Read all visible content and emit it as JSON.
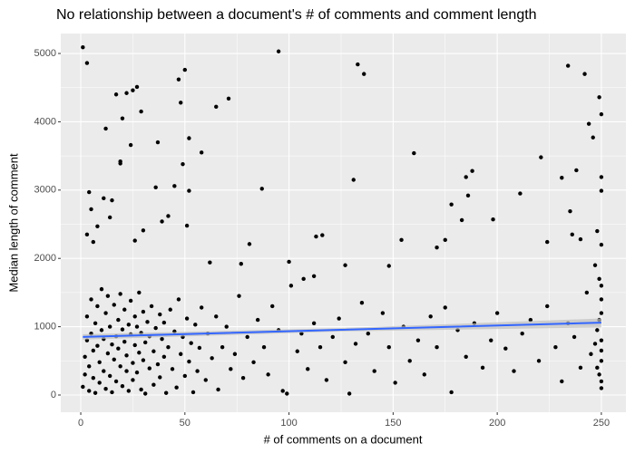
{
  "chart_data": {
    "type": "scatter",
    "title": "No relationship between a document's # of comments and comment length",
    "x_label": "# of comments on a document",
    "y_label": "Median length of comment",
    "xlim": [
      -9.6,
      261.8
    ],
    "ylim": [
      -252,
      5292
    ],
    "xticks": [
      0,
      50,
      100,
      150,
      200,
      250
    ],
    "yticks": [
      0,
      1000,
      2000,
      3000,
      4000,
      5000
    ],
    "grid": true,
    "panel_color": "#ebebeb",
    "series": [
      {
        "color": "#000000",
        "x": [
          1,
          3,
          95,
          133,
          136,
          234,
          242,
          249,
          250,
          27,
          25,
          22,
          17,
          29,
          47,
          50,
          48,
          65,
          71,
          12,
          20,
          24,
          19,
          19,
          37,
          52,
          58,
          49,
          45,
          36,
          4,
          5,
          11,
          15,
          52,
          87,
          131,
          160,
          188,
          185,
          178,
          198,
          211,
          221,
          231,
          238,
          235,
          246,
          244,
          250,
          250,
          183,
          186,
          116,
          113,
          127,
          148,
          154,
          171,
          175,
          224,
          236,
          240,
          248,
          250,
          42,
          39,
          51,
          26,
          30,
          8,
          14,
          3,
          6,
          81,
          77,
          62,
          100,
          107,
          112,
          1,
          2,
          2,
          3,
          3,
          4,
          4,
          5,
          5,
          6,
          6,
          7,
          7,
          8,
          8,
          9,
          9,
          10,
          10,
          11,
          11,
          12,
          12,
          13,
          13,
          14,
          14,
          15,
          15,
          16,
          16,
          17,
          17,
          18,
          18,
          19,
          19,
          20,
          20,
          21,
          21,
          22,
          22,
          23,
          23,
          24,
          24,
          25,
          25,
          26,
          26,
          27,
          27,
          28,
          28,
          29,
          29,
          30,
          30,
          31,
          31,
          32,
          33,
          33,
          34,
          35,
          35,
          36,
          37,
          38,
          38,
          39,
          40,
          40,
          41,
          42,
          43,
          44,
          45,
          46,
          47,
          48,
          49,
          50,
          51,
          52,
          53,
          54,
          55,
          56,
          57,
          58,
          60,
          61,
          63,
          65,
          66,
          68,
          70,
          72,
          74,
          76,
          78,
          80,
          83,
          85,
          88,
          90,
          92,
          95,
          97,
          99,
          101,
          104,
          106,
          109,
          112,
          115,
          118,
          121,
          124,
          127,
          129,
          132,
          135,
          138,
          141,
          145,
          148,
          151,
          155,
          158,
          162,
          165,
          168,
          171,
          175,
          178,
          181,
          185,
          189,
          193,
          197,
          200,
          204,
          208,
          212,
          216,
          220,
          224,
          228,
          231,
          234,
          237,
          240,
          243,
          245,
          247,
          248,
          249,
          249,
          250,
          250,
          250,
          250,
          250,
          250,
          250,
          250,
          249,
          248,
          247
        ],
        "values": [
          5090,
          4860,
          5030,
          4840,
          4700,
          4820,
          4700,
          4360,
          4110,
          4510,
          4460,
          4420,
          4400,
          4150,
          4620,
          4760,
          4280,
          4220,
          4340,
          3900,
          4050,
          3660,
          3420,
          3390,
          3700,
          3760,
          3550,
          3380,
          3060,
          3040,
          2970,
          2720,
          2880,
          2850,
          2990,
          3020,
          3150,
          3540,
          3280,
          3190,
          2790,
          2570,
          2950,
          3480,
          3180,
          3290,
          2690,
          3770,
          3970,
          3190,
          2990,
          2560,
          2920,
          2340,
          2320,
          1900,
          1890,
          2270,
          2160,
          2270,
          2240,
          2350,
          2280,
          2400,
          2200,
          2620,
          2540,
          2480,
          2260,
          2410,
          2470,
          2600,
          2350,
          2240,
          2210,
          1920,
          1940,
          1950,
          1700,
          1740,
          120,
          300,
          560,
          800,
          1150,
          60,
          420,
          900,
          1400,
          250,
          650,
          1050,
          30,
          720,
          1300,
          480,
          180,
          950,
          1550,
          350,
          820,
          1200,
          90,
          610,
          1450,
          280,
          1000,
          740,
          40,
          1320,
          520,
          860,
          200,
          1100,
          680,
          420,
          1480,
          960,
          130,
          780,
          1250,
          350,
          580,
          1030,
          60,
          890,
          1380,
          470,
          220,
          1150,
          730,
          1000,
          330,
          620,
          1500,
          80,
          910,
          1220,
          510,
          770,
          20,
          1070,
          390,
          860,
          1300,
          150,
          640,
          980,
          450,
          1180,
          260,
          820,
          560,
          1060,
          30,
          700,
          1250,
          380,
          930,
          110,
          1400,
          600,
          850,
          280,
          1120,
          490,
          760,
          40,
          1030,
          350,
          690,
          1280,
          220,
          900,
          540,
          1150,
          80,
          700,
          1000,
          380,
          600,
          1450,
          250,
          850,
          480,
          1100,
          700,
          300,
          1300,
          950,
          60,
          20,
          1600,
          640,
          900,
          380,
          1050,
          700,
          220,
          850,
          1120,
          480,
          20,
          750,
          1350,
          900,
          350,
          1200,
          700,
          180,
          1000,
          500,
          800,
          300,
          1150,
          700,
          1280,
          40,
          950,
          560,
          1050,
          400,
          800,
          1200,
          680,
          350,
          900,
          1100,
          500,
          1300,
          700,
          200,
          1050,
          850,
          400,
          1500,
          600,
          1900,
          950,
          300,
          1700,
          100,
          500,
          800,
          1200,
          1400,
          1600,
          650,
          200,
          1100,
          400,
          750
        ]
      },
      {
        "type": "line",
        "color": "#3366ff",
        "band_color": "#bfbfbf",
        "x": [
          1,
          125,
          250
        ],
        "values": [
          850,
          955,
          1060
        ],
        "lower": [
          810,
          930,
          990
        ],
        "upper": [
          890,
          980,
          1120
        ]
      }
    ]
  }
}
